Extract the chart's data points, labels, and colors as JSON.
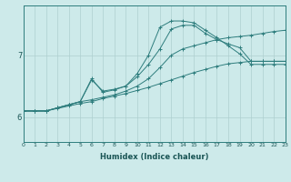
{
  "xlabel": "Humidex (Indice chaleur)",
  "background_color": "#cdeaea",
  "line_color": "#2e7d7d",
  "x_min": 0,
  "x_max": 23,
  "y_min": 5.6,
  "y_max": 7.8,
  "series": [
    {
      "x": [
        0,
        1,
        2,
        3,
        4,
        5,
        6,
        7,
        8,
        9,
        10,
        11,
        12,
        13,
        14,
        15,
        16,
        17,
        18,
        19,
        20,
        21,
        22,
        23
      ],
      "y": [
        6.1,
        6.1,
        6.1,
        6.14,
        6.18,
        6.22,
        6.25,
        6.3,
        6.34,
        6.38,
        6.43,
        6.48,
        6.54,
        6.6,
        6.66,
        6.72,
        6.77,
        6.82,
        6.86,
        6.88,
        6.9,
        6.9,
        6.9,
        6.9
      ]
    },
    {
      "x": [
        0,
        1,
        2,
        3,
        4,
        5,
        6,
        7,
        8,
        9,
        10,
        11,
        12,
        13,
        14,
        15,
        16,
        17,
        18,
        19,
        20,
        21,
        22,
        23
      ],
      "y": [
        6.1,
        6.1,
        6.1,
        6.15,
        6.2,
        6.25,
        6.28,
        6.32,
        6.36,
        6.42,
        6.5,
        6.62,
        6.8,
        7.0,
        7.1,
        7.15,
        7.2,
        7.25,
        7.28,
        7.3,
        7.32,
        7.35,
        7.38,
        7.4
      ]
    },
    {
      "x": [
        0,
        1,
        2,
        3,
        4,
        5,
        6,
        7,
        8,
        9,
        10,
        11,
        12,
        13,
        14,
        15,
        16,
        17,
        18,
        19,
        20,
        21,
        22,
        23
      ],
      "y": [
        6.1,
        6.1,
        6.1,
        6.15,
        6.2,
        6.25,
        6.6,
        6.42,
        6.45,
        6.5,
        6.65,
        6.85,
        7.1,
        7.42,
        7.48,
        7.48,
        7.35,
        7.25,
        7.18,
        7.12,
        6.9,
        6.9,
        6.9,
        6.9
      ]
    },
    {
      "x": [
        0,
        1,
        2,
        3,
        4,
        5,
        6,
        7,
        8,
        9,
        10,
        11,
        12,
        13,
        14,
        15,
        16,
        17,
        18,
        19,
        20,
        21,
        22,
        23
      ],
      "y": [
        6.1,
        6.1,
        6.1,
        6.15,
        6.2,
        6.25,
        6.62,
        6.4,
        6.44,
        6.5,
        6.7,
        7.0,
        7.45,
        7.55,
        7.55,
        7.52,
        7.4,
        7.28,
        7.15,
        7.02,
        6.85,
        6.85,
        6.85,
        6.85
      ]
    }
  ],
  "yticks": [
    6,
    7
  ],
  "xticks": [
    0,
    1,
    2,
    3,
    4,
    5,
    6,
    7,
    8,
    9,
    10,
    11,
    12,
    13,
    14,
    15,
    16,
    17,
    18,
    19,
    20,
    21,
    22,
    23
  ]
}
